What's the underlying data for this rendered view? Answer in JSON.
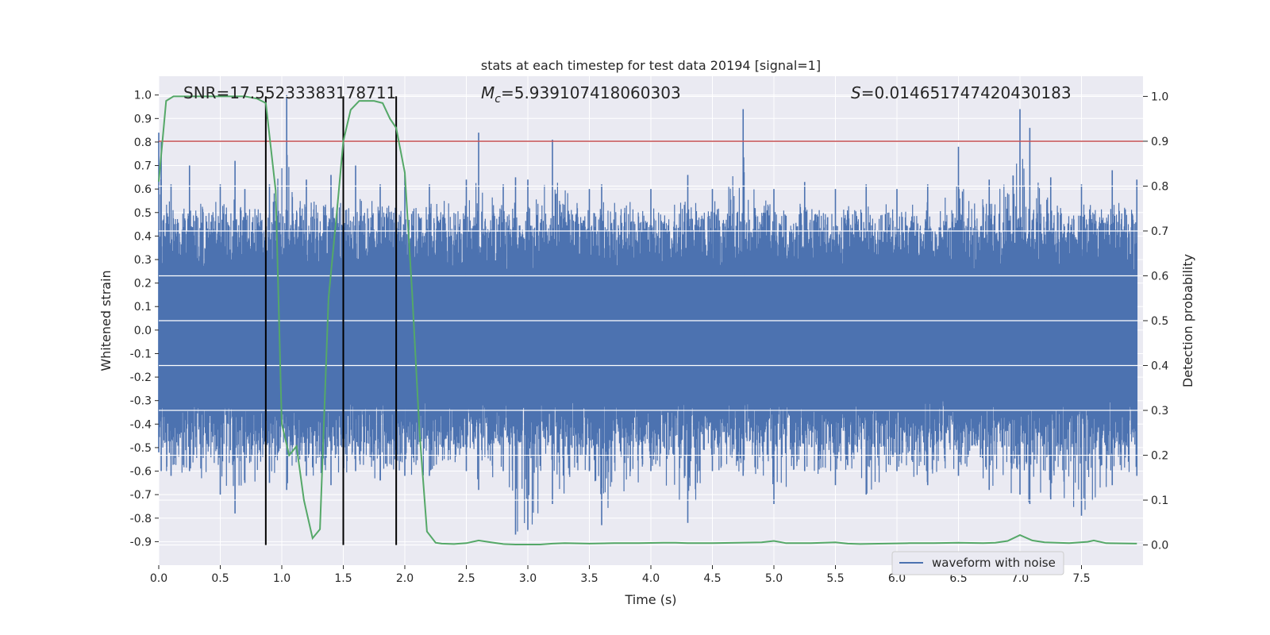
{
  "chart_data": {
    "type": "line",
    "title": "stats at each timestep for test data 20194 [signal=1]",
    "xlabel": "Time (s)",
    "ylabel_left": "Whitened strain",
    "ylabel_right": "Detection probability",
    "annotations": {
      "snr": "SNR=17.55233383178711",
      "mc_symbol": "M",
      "mc_sub": "c",
      "mc_value": "=5.939107418060303",
      "s_symbol": "S",
      "s_value": "=0.014651747420430183"
    },
    "xlim": [
      0.0,
      8.0
    ],
    "ylim_left": [
      -1.0,
      1.08
    ],
    "ylim_right": [
      -0.045,
      1.045
    ],
    "x_ticks": [
      "0.0",
      "0.5",
      "1.0",
      "1.5",
      "2.0",
      "2.5",
      "3.0",
      "3.5",
      "4.0",
      "4.5",
      "5.0",
      "5.5",
      "6.0",
      "6.5",
      "7.0",
      "7.5"
    ],
    "y_ticks_left": [
      "1.0",
      "0.9",
      "0.8",
      "0.7",
      "0.6",
      "0.5",
      "0.4",
      "0.3",
      "0.2",
      "0.1",
      "0.0",
      "-0.1",
      "-0.2",
      "-0.3",
      "-0.4",
      "-0.5",
      "-0.6",
      "-0.7",
      "-0.8",
      "-0.9"
    ],
    "y_ticks_right": [
      "1.0",
      "0.9",
      "0.8",
      "0.7",
      "0.6",
      "0.5",
      "0.4",
      "0.3",
      "0.2",
      "0.1",
      "0.0"
    ],
    "threshold": {
      "value": 0.9,
      "axis": "right",
      "color": "#c44e52"
    },
    "vertical_markers": [
      0.87,
      1.5,
      1.93
    ],
    "legend": {
      "position": "lower-right",
      "entries": [
        {
          "label": "waveform with noise",
          "color": "#4c72b0"
        }
      ]
    },
    "series": [
      {
        "name": "waveform with noise",
        "axis": "left",
        "color": "#4c72b0",
        "envelope": {
          "x": [
            0.0,
            0.02,
            0.1,
            0.25,
            0.5,
            0.62,
            0.7,
            0.9,
            1.04,
            1.2,
            1.4,
            1.6,
            1.8,
            2.0,
            2.2,
            2.5,
            2.6,
            2.8,
            2.9,
            3.0,
            3.2,
            3.5,
            3.6,
            4.0,
            4.3,
            4.5,
            4.75,
            5.0,
            5.25,
            5.5,
            5.75,
            6.0,
            6.25,
            6.5,
            6.75,
            7.0,
            7.08,
            7.25,
            7.5,
            7.75,
            7.95
          ],
          "upper": [
            0.84,
            0.8,
            0.62,
            0.7,
            0.62,
            0.72,
            0.6,
            0.62,
            1.0,
            0.64,
            0.66,
            0.7,
            0.62,
            0.66,
            0.62,
            0.64,
            0.84,
            0.62,
            0.65,
            0.64,
            0.81,
            0.6,
            0.62,
            0.6,
            0.66,
            0.6,
            0.94,
            0.6,
            0.63,
            0.6,
            0.62,
            0.6,
            0.62,
            0.78,
            0.64,
            0.94,
            0.86,
            0.65,
            0.62,
            0.68,
            0.64
          ],
          "lower": [
            -0.52,
            -0.6,
            -0.62,
            -0.6,
            -0.7,
            -0.78,
            -0.65,
            -0.65,
            -0.68,
            -0.62,
            -0.66,
            -0.6,
            -0.64,
            -0.62,
            -0.62,
            -0.6,
            -0.68,
            -0.6,
            -0.87,
            -0.85,
            -0.74,
            -0.6,
            -0.83,
            -0.6,
            -0.82,
            -0.6,
            -0.62,
            -0.74,
            -0.6,
            -0.66,
            -0.7,
            -0.6,
            -0.66,
            -0.62,
            -0.68,
            -0.7,
            -0.74,
            -0.72,
            -0.79,
            -0.66,
            -0.62
          ]
        }
      },
      {
        "name": "",
        "axis": "right",
        "color": "#55a868",
        "x": [
          0.0,
          0.06,
          0.12,
          0.2,
          0.3,
          0.4,
          0.5,
          0.6,
          0.7,
          0.8,
          0.87,
          0.95,
          1.0,
          1.06,
          1.12,
          1.18,
          1.25,
          1.31,
          1.38,
          1.45,
          1.5,
          1.56,
          1.63,
          1.75,
          1.82,
          1.88,
          1.93,
          2.0,
          2.06,
          2.12,
          2.18,
          2.25,
          2.3,
          2.4,
          2.5,
          2.6,
          2.7,
          2.8,
          2.9,
          3.0,
          3.1,
          3.2,
          3.3,
          3.5,
          3.7,
          3.9,
          4.1,
          4.2,
          4.3,
          4.5,
          4.7,
          4.9,
          5.0,
          5.1,
          5.3,
          5.5,
          5.6,
          5.7,
          5.9,
          6.1,
          6.3,
          6.5,
          6.7,
          6.8,
          6.9,
          7.0,
          7.1,
          7.2,
          7.4,
          7.55,
          7.6,
          7.7,
          7.95
        ],
        "y": [
          0.81,
          0.99,
          1.0,
          1.0,
          1.0,
          1.0,
          1.0,
          1.0,
          1.0,
          0.995,
          0.985,
          0.79,
          0.27,
          0.2,
          0.22,
          0.1,
          0.015,
          0.035,
          0.55,
          0.75,
          0.9,
          0.97,
          0.99,
          0.99,
          0.985,
          0.95,
          0.93,
          0.83,
          0.56,
          0.25,
          0.03,
          0.005,
          0.003,
          0.002,
          0.004,
          0.01,
          0.006,
          0.002,
          0.001,
          0.001,
          0.001,
          0.003,
          0.004,
          0.003,
          0.004,
          0.004,
          0.005,
          0.005,
          0.004,
          0.004,
          0.005,
          0.006,
          0.009,
          0.004,
          0.004,
          0.006,
          0.003,
          0.002,
          0.003,
          0.004,
          0.004,
          0.005,
          0.004,
          0.005,
          0.009,
          0.022,
          0.01,
          0.006,
          0.004,
          0.007,
          0.01,
          0.004,
          0.003
        ]
      }
    ]
  }
}
